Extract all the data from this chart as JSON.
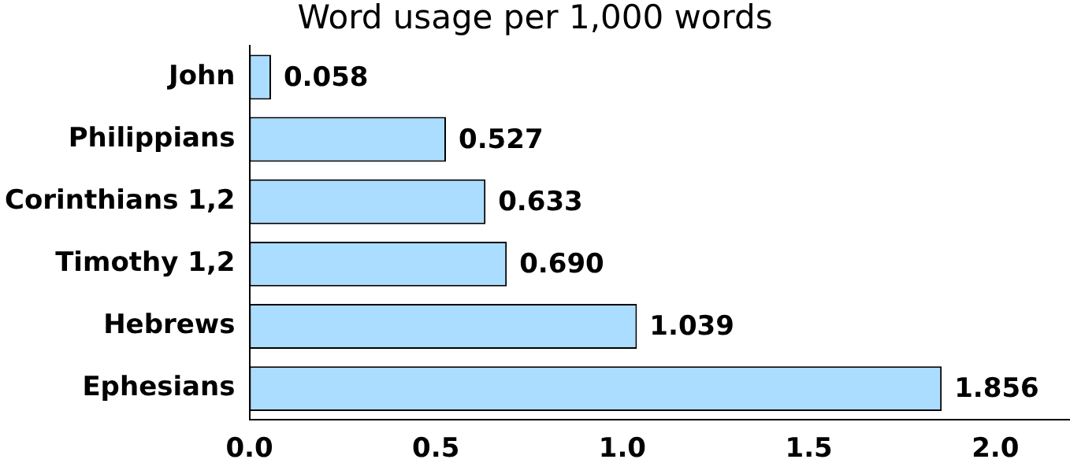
{
  "chart_data": {
    "type": "bar",
    "orientation": "horizontal",
    "title": "Word usage per 1,000 words",
    "categories": [
      "John",
      "Philippians",
      "Corinthians 1,2",
      "Timothy 1,2",
      "Hebrews",
      "Ephesians"
    ],
    "values": [
      0.058,
      0.527,
      0.633,
      0.69,
      1.039,
      1.856
    ],
    "value_labels": [
      "0.058",
      "0.527",
      "0.633",
      "0.690",
      "1.039",
      "1.856"
    ],
    "color": "#aaddff",
    "xlim": [
      0,
      2.2
    ],
    "xticks": [
      {
        "value": 0,
        "label": "0.0"
      },
      {
        "value": 0.5,
        "label": "0.5"
      },
      {
        "value": 1,
        "label": "1.0"
      },
      {
        "value": 1.5,
        "label": "1.5"
      },
      {
        "value": 2,
        "label": "2.0"
      }
    ],
    "grid": false,
    "legend": false
  }
}
